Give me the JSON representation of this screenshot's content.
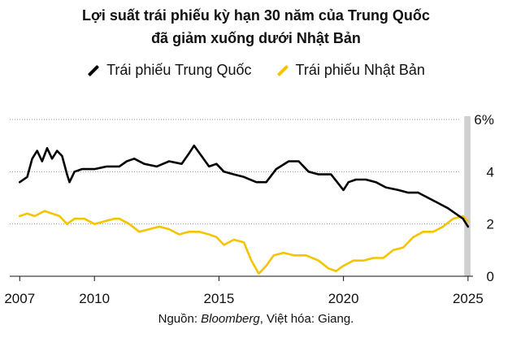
{
  "header": {
    "title_line1": "Lợi suất trái phiếu kỳ hạn 30 năm của Trung Quốc",
    "title_line2": "đã giảm xuống dưới Nhật Bản"
  },
  "legend": {
    "china": "Trái phiếu Trung Quốc",
    "japan": "Trái phiếu Nhật Bản"
  },
  "source": {
    "prefix": "Nguồn: ",
    "name": "Bloomberg",
    "suffix": ", Việt hóa: Giang."
  },
  "colors": {
    "china": "#000000",
    "japan": "#f5c400",
    "grid": "#999999",
    "highlight": "#cfcfcf"
  },
  "chart_data": {
    "type": "line",
    "title": "Lợi suất trái phiếu kỳ hạn 30 năm của Trung Quốc đã giảm xuống dưới Nhật Bản",
    "xlabel": "",
    "ylabel": "",
    "xlim": [
      2006.6,
      2025.2
    ],
    "ylim": [
      0,
      6
    ],
    "x_ticks": [
      2007,
      2010,
      2015,
      2020,
      2025
    ],
    "x_tick_labels": [
      "2007",
      "2010",
      "2015",
      "2020",
      "2025"
    ],
    "y_ticks": [
      0,
      2,
      4,
      6
    ],
    "y_tick_labels": [
      "0",
      "2",
      "4",
      "6%"
    ],
    "highlight_range": [
      2024.85,
      2025.1
    ],
    "legend_position": "top",
    "series": [
      {
        "name": "Trái phiếu Trung Quốc",
        "color": "#000000",
        "x": [
          2007.0,
          2007.3,
          2007.5,
          2007.7,
          2007.9,
          2008.1,
          2008.3,
          2008.5,
          2008.7,
          2008.9,
          2009.0,
          2009.2,
          2009.5,
          2010.0,
          2010.5,
          2011.0,
          2011.3,
          2011.6,
          2012.0,
          2012.5,
          2013.0,
          2013.5,
          2013.8,
          2014.0,
          2014.3,
          2014.6,
          2014.9,
          2015.2,
          2015.6,
          2016.0,
          2016.5,
          2016.9,
          2017.3,
          2017.8,
          2018.2,
          2018.6,
          2019.0,
          2019.5,
          2020.0,
          2020.2,
          2020.5,
          2020.9,
          2021.3,
          2021.7,
          2022.2,
          2022.6,
          2023.0,
          2023.4,
          2023.8,
          2024.2,
          2024.5,
          2024.8,
          2025.0
        ],
        "values": [
          3.6,
          3.8,
          4.5,
          4.8,
          4.4,
          4.9,
          4.5,
          4.8,
          4.6,
          3.9,
          3.6,
          4.0,
          4.1,
          4.1,
          4.2,
          4.2,
          4.4,
          4.5,
          4.3,
          4.2,
          4.4,
          4.3,
          4.7,
          5.0,
          4.6,
          4.2,
          4.3,
          4.0,
          3.9,
          3.8,
          3.6,
          3.6,
          4.1,
          4.4,
          4.4,
          4.0,
          3.9,
          3.9,
          3.3,
          3.6,
          3.7,
          3.7,
          3.6,
          3.4,
          3.3,
          3.2,
          3.2,
          3.0,
          2.8,
          2.6,
          2.4,
          2.2,
          1.9
        ]
      },
      {
        "name": "Trái phiếu Nhật Bản",
        "color": "#f5c400",
        "x": [
          2007.0,
          2007.3,
          2007.6,
          2008.0,
          2008.3,
          2008.6,
          2008.9,
          2009.2,
          2009.6,
          2010.0,
          2010.4,
          2010.8,
          2011.0,
          2011.4,
          2011.8,
          2012.2,
          2012.6,
          2013.0,
          2013.4,
          2013.8,
          2014.2,
          2014.6,
          2014.9,
          2015.2,
          2015.6,
          2016.0,
          2016.3,
          2016.6,
          2016.9,
          2017.2,
          2017.6,
          2018.0,
          2018.5,
          2019.0,
          2019.4,
          2019.7,
          2020.0,
          2020.4,
          2020.8,
          2021.2,
          2021.6,
          2022.0,
          2022.4,
          2022.8,
          2023.2,
          2023.6,
          2024.0,
          2024.4,
          2024.8,
          2025.0
        ],
        "values": [
          2.3,
          2.4,
          2.3,
          2.5,
          2.4,
          2.3,
          2.0,
          2.2,
          2.2,
          2.0,
          2.1,
          2.2,
          2.2,
          2.0,
          1.7,
          1.8,
          1.9,
          1.8,
          1.6,
          1.7,
          1.7,
          1.6,
          1.5,
          1.2,
          1.4,
          1.3,
          0.6,
          0.1,
          0.4,
          0.8,
          0.9,
          0.8,
          0.8,
          0.6,
          0.3,
          0.2,
          0.4,
          0.6,
          0.6,
          0.7,
          0.7,
          1.0,
          1.1,
          1.5,
          1.7,
          1.7,
          1.9,
          2.2,
          2.3,
          2.1
        ]
      }
    ]
  }
}
